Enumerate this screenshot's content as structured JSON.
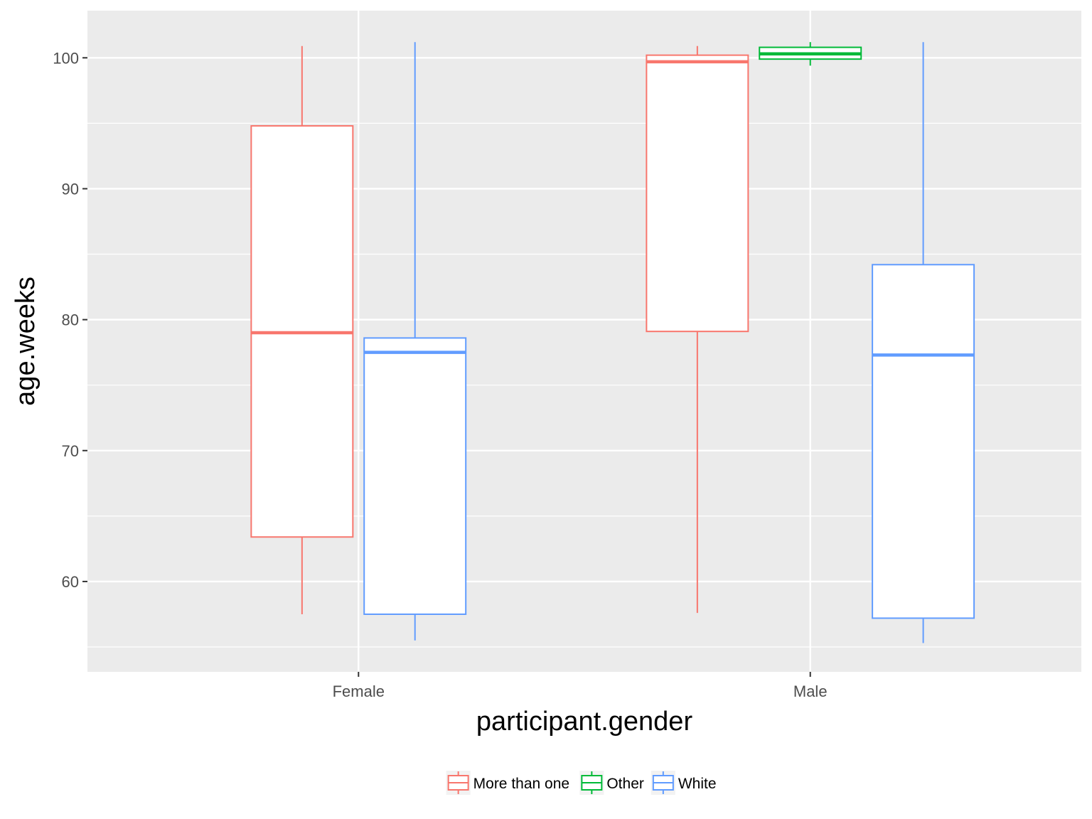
{
  "chart_data": {
    "type": "boxplot",
    "title": "",
    "xlabel": "participant.gender",
    "ylabel": "age.weeks",
    "categories": [
      "Female",
      "Male"
    ],
    "ylim": [
      53.1,
      103.6
    ],
    "yticks": [
      60,
      70,
      80,
      90,
      100
    ],
    "grid": true,
    "legend_position": "bottom",
    "series": [
      {
        "name": "More than one",
        "color": "#F8766D",
        "boxes": [
          {
            "category": "Female",
            "min": 57.5,
            "q1": 63.4,
            "median": 79.0,
            "q3": 94.8,
            "max": 100.9
          },
          {
            "category": "Male",
            "min": 57.6,
            "q1": 79.1,
            "median": 99.7,
            "q3": 100.2,
            "max": 100.9
          }
        ]
      },
      {
        "name": "Other",
        "color": "#00BA38",
        "boxes": [
          {
            "category": "Male",
            "min": 99.4,
            "q1": 99.9,
            "median": 100.3,
            "q3": 100.8,
            "max": 101.2
          }
        ]
      },
      {
        "name": "White",
        "color": "#619CFF",
        "boxes": [
          {
            "category": "Female",
            "min": 55.5,
            "q1": 57.5,
            "median": 77.5,
            "q3": 78.6,
            "max": 101.2
          },
          {
            "category": "Male",
            "min": 55.3,
            "q1": 57.2,
            "median": 77.3,
            "q3": 84.2,
            "max": 101.2
          }
        ]
      }
    ]
  }
}
